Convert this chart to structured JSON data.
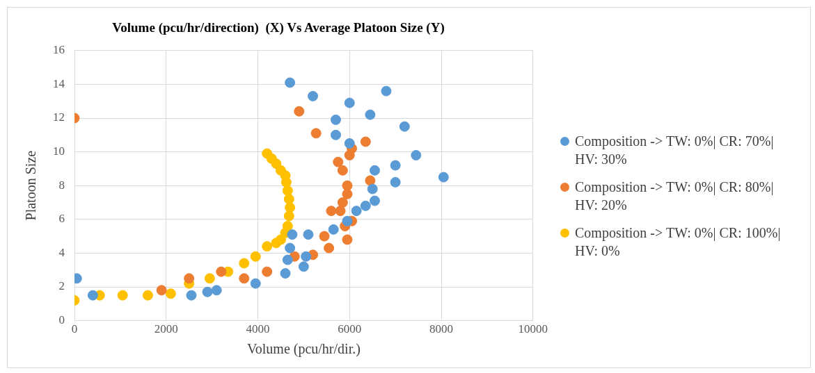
{
  "chart_data": {
    "type": "scatter",
    "title": "Volume (pcu/hr/direction)  (X) Vs Average Platoon Size (Y)",
    "xlabel": "Volume (pcu/hr/dir.)",
    "ylabel": "Platoon Size",
    "xlim": [
      0,
      10000
    ],
    "xticks": [
      0,
      2000,
      4000,
      6000,
      8000,
      10000
    ],
    "ylim": [
      0,
      16
    ],
    "yticks": [
      0,
      2,
      4,
      6,
      8,
      10,
      12,
      14,
      16
    ],
    "grid": true,
    "legend": "right",
    "marker": "circle",
    "series": [
      {
        "name": "Composition -> TW: 0%| CR: 70%| HV: 30%",
        "color": "#5b9bd5",
        "x": [
          50,
          400,
          2550,
          2900,
          3100,
          3950,
          4600,
          4650,
          4700,
          4750,
          5000,
          5050,
          5100,
          4700,
          5200,
          5700,
          5700,
          6000,
          6000,
          6450,
          6800,
          7200,
          7450,
          7000,
          7000,
          8050,
          6550,
          6500,
          6550,
          6350,
          6150,
          5950,
          5650
        ],
        "values": [
          2.5,
          1.5,
          1.5,
          1.7,
          1.8,
          2.2,
          2.8,
          3.6,
          4.3,
          5.1,
          3.2,
          3.8,
          5.1,
          14.1,
          13.3,
          11.9,
          11.0,
          12.9,
          10.5,
          12.2,
          13.6,
          11.5,
          9.8,
          9.2,
          8.2,
          8.5,
          8.9,
          7.8,
          7.1,
          6.8,
          6.5,
          5.9,
          5.4
        ]
      },
      {
        "name": "Composition -> TW: 0%| CR: 80%| HV: 20%",
        "color": "#ed7d31",
        "x": [
          0,
          1900,
          2500,
          3200,
          3700,
          4200,
          4600,
          4650,
          4800,
          5200,
          5450,
          5550,
          4900,
          5250,
          5270,
          5750,
          5850,
          6000,
          6050,
          6350,
          6450,
          5950,
          5950,
          5850,
          5800,
          5600,
          5950,
          6050,
          5950,
          5900
        ],
        "values": [
          12,
          1.8,
          2.5,
          2.9,
          2.5,
          2.9,
          null,
          null,
          3.8,
          3.9,
          5.0,
          4.3,
          12.4,
          null,
          11.1,
          9.4,
          8.9,
          9.8,
          10.2,
          10.6,
          8.3,
          8.0,
          7.5,
          7.0,
          6.5,
          6.5,
          null,
          5.9,
          4.8,
          5.6
        ]
      },
      {
        "name": "Composition -> TW: 0%| CR: 100%| HV: 0%",
        "color": "#ffc000",
        "x": [
          0,
          550,
          1050,
          1600,
          2100,
          2500,
          2950,
          3350,
          3700,
          3950,
          4200,
          4400,
          4500,
          4600,
          4650,
          4680,
          4700,
          4680,
          4650,
          4620,
          4600,
          4500,
          4400,
          4300,
          4200
        ],
        "values": [
          1.2,
          1.5,
          1.5,
          1.5,
          1.6,
          2.2,
          2.5,
          2.9,
          3.4,
          3.8,
          4.4,
          4.6,
          4.8,
          5.2,
          5.6,
          6.2,
          6.7,
          7.2,
          7.7,
          8.2,
          8.6,
          8.9,
          9.3,
          9.6,
          9.9
        ]
      }
    ]
  }
}
